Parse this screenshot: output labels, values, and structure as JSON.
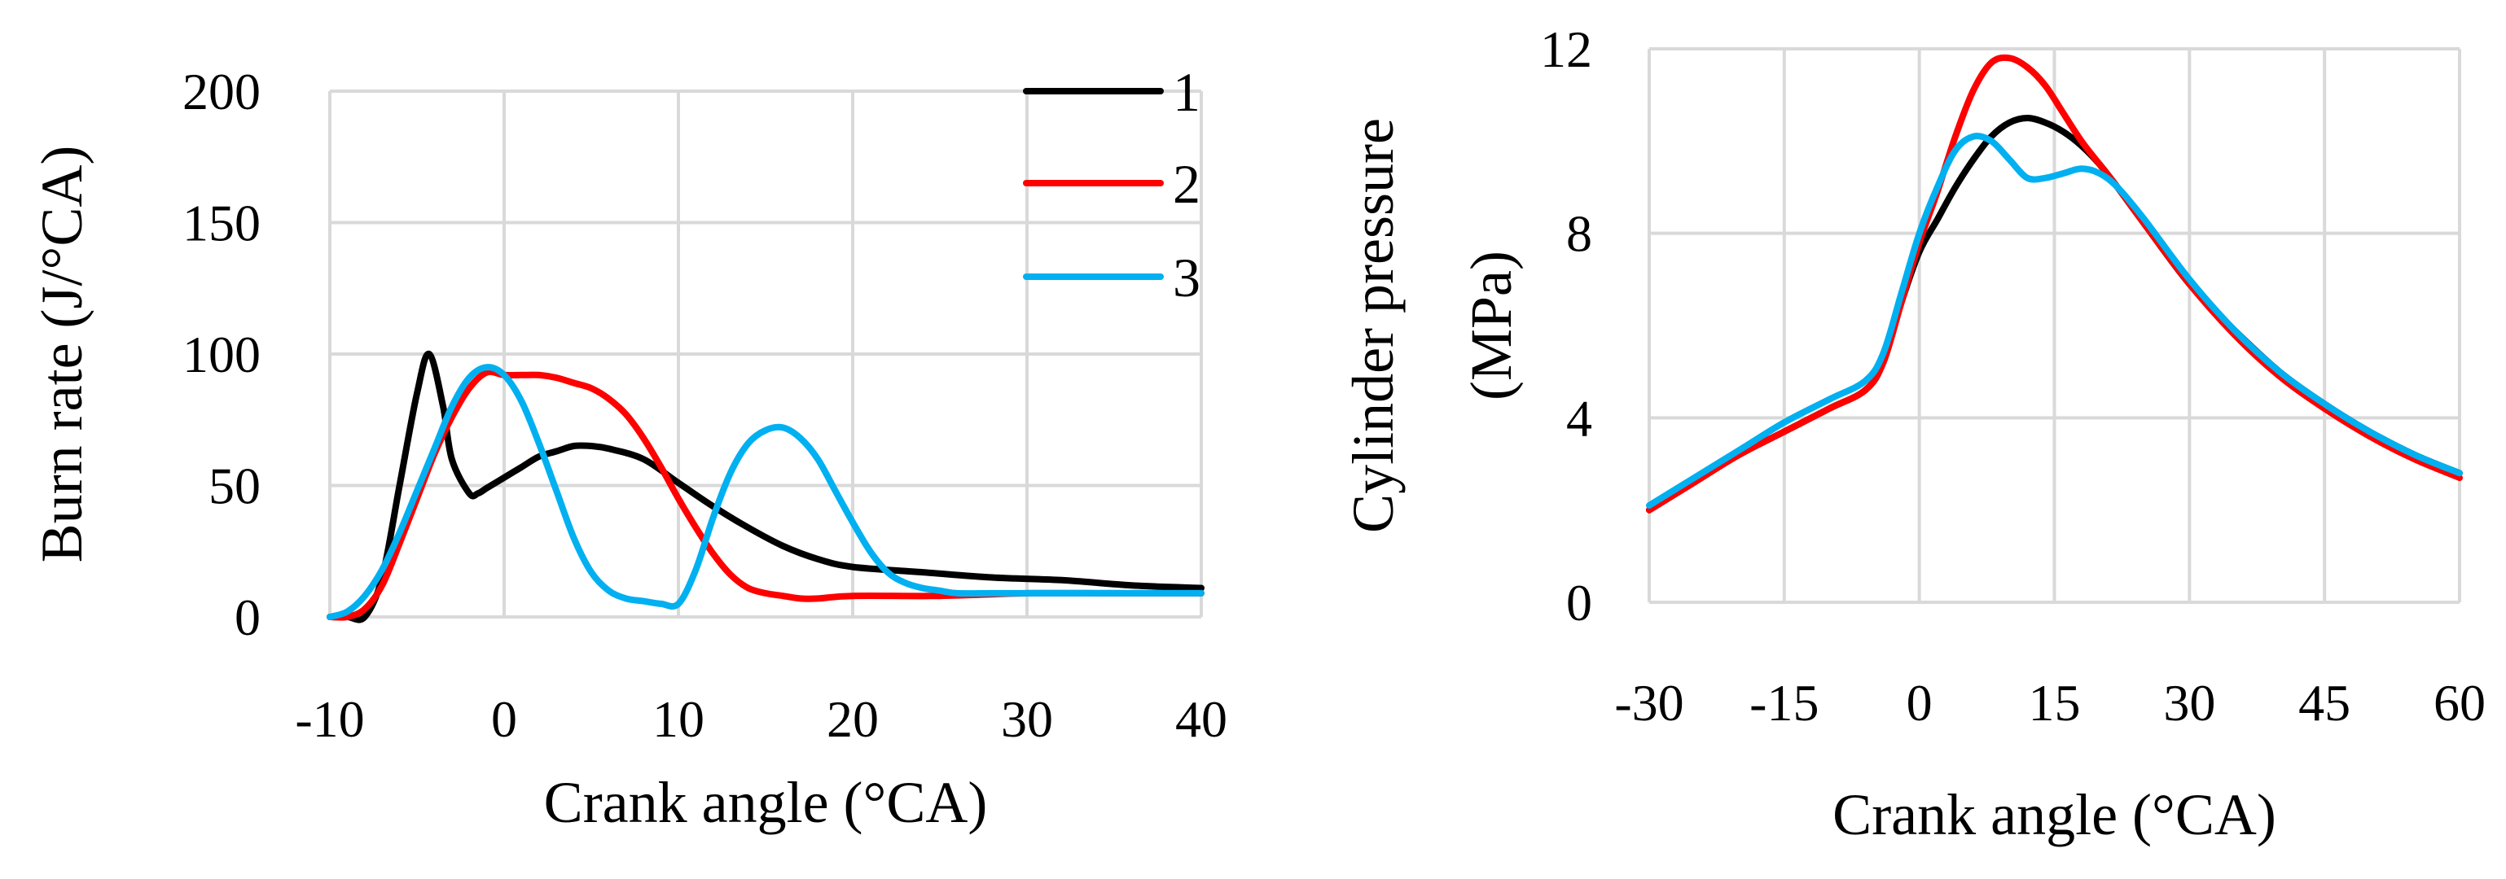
{
  "colors": {
    "series_1": "#000000",
    "series_2": "#ff0000",
    "series_3": "#00b0f0",
    "grid": "#d9d9d9"
  },
  "chart_data": [
    {
      "type": "line",
      "title": "",
      "xlabel": "Crank angle (°CA)",
      "ylabel": "Burn rate (J/°CA)",
      "xlim": [
        -10,
        40
      ],
      "ylim": [
        0,
        200
      ],
      "xticks": [
        "-10",
        "0",
        "10",
        "20",
        "30",
        "40"
      ],
      "yticks": [
        "0",
        "50",
        "100",
        "150",
        "200"
      ],
      "grid": true,
      "legend": "top-right",
      "series": [
        {
          "name": "1",
          "color": "#000000",
          "x": [
            -10,
            -9,
            -8,
            -7,
            -6,
            -5,
            -4.3,
            -3.5,
            -3,
            -2,
            -1.5,
            -1,
            0,
            1,
            2,
            3,
            4,
            5,
            6,
            8,
            10,
            12,
            14,
            16,
            18,
            20,
            24,
            28,
            32,
            36,
            40
          ],
          "y": [
            0,
            0,
            0,
            15,
            50,
            85,
            100,
            80,
            60,
            47,
            47,
            49,
            53,
            57,
            61,
            63,
            65,
            65,
            64,
            60,
            51,
            42,
            34,
            27,
            22,
            19,
            17,
            15,
            14,
            12,
            11
          ]
        },
        {
          "name": "2",
          "color": "#ff0000",
          "x": [
            -10,
            -9,
            -8,
            -7,
            -6,
            -5,
            -4,
            -3,
            -2,
            -1,
            0,
            1,
            2,
            3,
            4,
            5,
            6,
            7,
            8,
            9,
            10,
            11,
            12,
            13,
            14,
            15,
            16,
            17,
            18,
            20,
            25,
            30,
            35,
            40
          ],
          "y": [
            0,
            0,
            3,
            12,
            28,
            45,
            62,
            76,
            87,
            93,
            92,
            92,
            92,
            91,
            89,
            87,
            83,
            77,
            68,
            57,
            45,
            34,
            24,
            16,
            11,
            9,
            8,
            7,
            7,
            8,
            8,
            9,
            9,
            9
          ]
        },
        {
          "name": "3",
          "color": "#00b0f0",
          "x": [
            -10,
            -9,
            -8,
            -7,
            -6,
            -5,
            -4,
            -3,
            -2,
            -1,
            0,
            1,
            2,
            3,
            4,
            5,
            6,
            7,
            8,
            9,
            10,
            11,
            12,
            13,
            14,
            15,
            16,
            17,
            18,
            19,
            20,
            21,
            22,
            23,
            24,
            25,
            26,
            28,
            30,
            35,
            40
          ],
          "y": [
            0,
            2,
            8,
            18,
            32,
            48,
            64,
            80,
            91,
            95,
            92,
            82,
            66,
            48,
            30,
            17,
            10,
            7,
            6,
            5,
            5,
            18,
            38,
            55,
            66,
            71,
            72,
            68,
            60,
            48,
            36,
            25,
            17,
            13,
            11,
            10,
            9,
            9,
            9,
            9,
            9
          ]
        }
      ]
    },
    {
      "type": "line",
      "title": "",
      "xlabel": "Crank angle (°CA)",
      "ylabel": "Cylinder pressure (MPa)",
      "ylabel_lines": [
        "Cylinder pressure",
        "(MPa)"
      ],
      "xlim": [
        -30,
        60
      ],
      "ylim": [
        0,
        12
      ],
      "xticks": [
        "-30",
        "-15",
        "0",
        "15",
        "30",
        "45",
        "60"
      ],
      "yticks": [
        "0",
        "4",
        "8",
        "12"
      ],
      "grid": true,
      "legend": "none",
      "series": [
        {
          "name": "1",
          "color": "#000000",
          "x": [
            -30,
            -25,
            -20,
            -15,
            -10,
            -6,
            -4,
            -2,
            0,
            2,
            4,
            6,
            8,
            10,
            12,
            14,
            16,
            18,
            20,
            22,
            25,
            30,
            35,
            40,
            45,
            50,
            55,
            60
          ],
          "y": [
            2.0,
            2.6,
            3.2,
            3.7,
            4.2,
            4.6,
            5.2,
            6.5,
            7.6,
            8.3,
            9.0,
            9.6,
            10.1,
            10.4,
            10.5,
            10.4,
            10.2,
            9.9,
            9.5,
            9.0,
            8.2,
            6.9,
            5.9,
            5.0,
            4.3,
            3.7,
            3.2,
            2.8
          ]
        },
        {
          "name": "2",
          "color": "#ff0000",
          "x": [
            -30,
            -25,
            -20,
            -15,
            -10,
            -6,
            -4,
            -2,
            0,
            2,
            4,
            6,
            8,
            10,
            12,
            14,
            16,
            18,
            20,
            22,
            25,
            30,
            35,
            40,
            45,
            50,
            55,
            60
          ],
          "y": [
            2.0,
            2.6,
            3.2,
            3.7,
            4.2,
            4.6,
            5.2,
            6.5,
            7.8,
            8.9,
            10.1,
            11.1,
            11.7,
            11.8,
            11.6,
            11.2,
            10.6,
            10.0,
            9.5,
            9.0,
            8.2,
            6.9,
            5.8,
            4.9,
            4.2,
            3.6,
            3.1,
            2.7
          ]
        },
        {
          "name": "3",
          "color": "#00b0f0",
          "x": [
            -30,
            -25,
            -20,
            -15,
            -10,
            -6,
            -4,
            -2,
            0,
            2,
            4,
            6,
            8,
            10,
            12,
            14,
            16,
            18,
            20,
            22,
            25,
            30,
            35,
            40,
            45,
            50,
            55,
            60
          ],
          "y": [
            2.1,
            2.7,
            3.3,
            3.9,
            4.4,
            4.8,
            5.4,
            6.7,
            8.0,
            9.0,
            9.8,
            10.1,
            10.0,
            9.6,
            9.2,
            9.2,
            9.3,
            9.4,
            9.3,
            9.0,
            8.3,
            7.0,
            5.9,
            5.0,
            4.3,
            3.7,
            3.2,
            2.8
          ]
        }
      ]
    }
  ]
}
